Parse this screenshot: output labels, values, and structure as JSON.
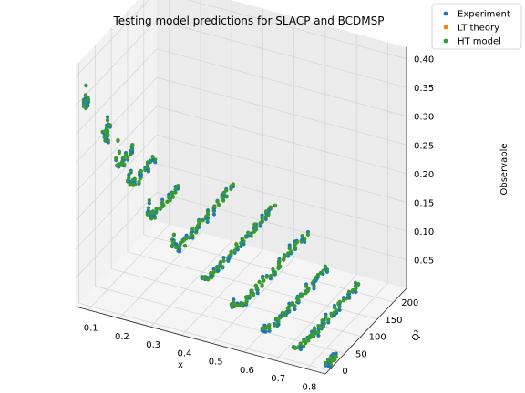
{
  "chart_data": {
    "type": "scatter",
    "projection": "3d",
    "title": "Testing model predictions for SLACP and BCDMSP",
    "xlabel": "x",
    "ylabel": "Q²",
    "zlabel": "Observable",
    "x_ticks": [
      "0.1",
      "0.2",
      "0.3",
      "0.4",
      "0.5",
      "0.6",
      "0.7",
      "0.8"
    ],
    "y_ticks": [
      "0",
      "50",
      "100",
      "150",
      "200"
    ],
    "z_ticks": [
      "0.05",
      "0.10",
      "0.15",
      "0.20",
      "0.25",
      "0.30",
      "0.35",
      "0.40"
    ],
    "xlim": [
      0.06,
      0.86
    ],
    "ylim": [
      -10,
      240
    ],
    "zlim": [
      0.0,
      0.42
    ],
    "grid": true,
    "legend_position": "top-right",
    "series": [
      {
        "name": "Experiment",
        "color": "#1f77b4"
      },
      {
        "name": "LT theory",
        "color": "#ff7f0e"
      },
      {
        "name": "HT model",
        "color": "#2ca02c"
      }
    ],
    "bands": [
      {
        "x": 0.08,
        "q2": [
          3,
          8
        ],
        "min_obs": 0.34,
        "right_obs": 0.36,
        "left_obs": 0.38
      },
      {
        "x": 0.14,
        "q2": [
          3,
          20
        ],
        "min_obs": 0.29,
        "right_obs": 0.31,
        "left_obs": 0.33
      },
      {
        "x": 0.18,
        "q2": [
          3,
          55
        ],
        "min_obs": 0.25,
        "right_obs": 0.26,
        "left_obs": 0.3
      },
      {
        "x": 0.22,
        "q2": [
          3,
          80
        ],
        "min_obs": 0.22,
        "right_obs": 0.23,
        "left_obs": 0.25
      },
      {
        "x": 0.28,
        "q2": [
          3,
          95
        ],
        "min_obs": 0.17,
        "right_obs": 0.18,
        "left_obs": 0.21
      },
      {
        "x": 0.35,
        "q2": [
          5,
          200
        ],
        "min_obs": 0.12,
        "right_obs": 0.13,
        "left_obs": 0.16
      },
      {
        "x": 0.45,
        "q2": [
          5,
          230
        ],
        "min_obs": 0.085,
        "right_obs": 0.09,
        "left_obs": 0.1
      },
      {
        "x": 0.55,
        "q2": [
          5,
          230
        ],
        "min_obs": 0.05,
        "right_obs": 0.055,
        "left_obs": 0.07
      },
      {
        "x": 0.65,
        "q2": [
          5,
          200
        ],
        "min_obs": 0.03,
        "right_obs": 0.03,
        "left_obs": 0.04
      },
      {
        "x": 0.75,
        "q2": [
          5,
          200
        ],
        "min_obs": 0.013,
        "right_obs": 0.015,
        "left_obs": 0.02
      },
      {
        "x": 0.85,
        "q2": [
          5,
          30
        ],
        "min_obs": 0.005,
        "right_obs": 0.005,
        "left_obs": 0.01
      }
    ]
  }
}
